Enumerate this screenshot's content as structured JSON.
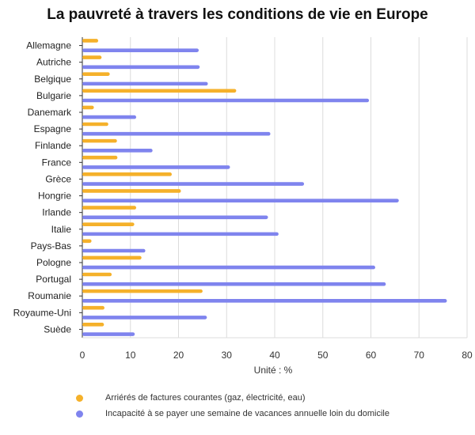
{
  "chart_data": {
    "type": "bar",
    "orientation": "horizontal",
    "title": "La pauvreté à travers les conditions de vie en Europe",
    "xlabel": "Unité : %",
    "ylabel": "",
    "xlim": [
      0,
      80
    ],
    "xticks": [
      0,
      10,
      20,
      30,
      40,
      50,
      60,
      70,
      80
    ],
    "grid": true,
    "legend_position": "bottom",
    "categories": [
      "Allemagne",
      "Autriche",
      "Belgique",
      "Bulgarie",
      "Danemark",
      "Espagne",
      "Finlande",
      "France",
      "Grèce",
      "Hongrie",
      "Irlande",
      "Italie",
      "Pays-Bas",
      "Pologne",
      "Portugal",
      "Roumanie",
      "Royaume-Uni",
      "Suède"
    ],
    "series": [
      {
        "name": "Arriérés de factures courantes (gaz, électricité, eau)",
        "color": "#f5b12a",
        "values": [
          3.3,
          4.0,
          5.7,
          32.0,
          2.4,
          5.4,
          7.2,
          7.3,
          18.6,
          20.5,
          11.2,
          10.8,
          1.9,
          12.3,
          6.1,
          25.0,
          4.6,
          4.5
        ]
      },
      {
        "name": "Incapacité à se payer une semaine de vacances annuelle loin du domicile",
        "color": "#7f84ee",
        "values": [
          24.2,
          24.4,
          26.1,
          59.6,
          11.2,
          39.1,
          14.6,
          30.7,
          46.1,
          65.8,
          38.6,
          40.8,
          13.1,
          60.9,
          63.1,
          75.8,
          25.9,
          10.9
        ]
      }
    ]
  }
}
